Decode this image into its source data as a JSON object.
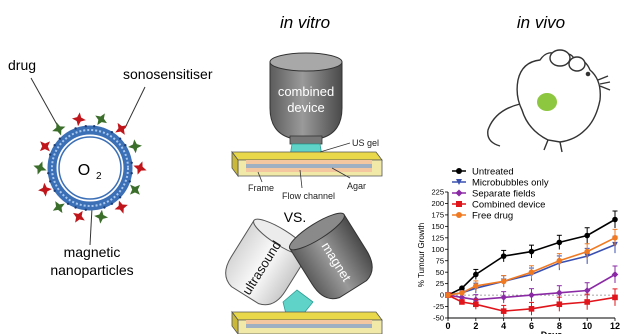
{
  "left_panel": {
    "drug_label": "drug",
    "sonosensitiser_label": "sonosensitiser",
    "core_label_main": "O",
    "core_label_sub": "2",
    "magnetic_label_line1": "magnetic",
    "magnetic_label_line2": "nanoparticles"
  },
  "in_vitro": {
    "heading": "in vitro",
    "device_label_line1": "combined",
    "device_label_line2": "device",
    "us_gel": "US gel",
    "agar": "Agar",
    "frame": "Frame",
    "flow_channel": "Flow channel",
    "vs": "VS.",
    "ultrasound_label": "ultrasound",
    "magnet_label": "magnet"
  },
  "in_vivo": {
    "heading": "in vivo"
  },
  "colors": {
    "blue_ring": "#3b6fb6",
    "drug_red": "#c0161b",
    "sonosensitiser_green": "#3b6e2a",
    "tumour_green": "#8dc63f",
    "gel_cyan": "#5fd3c8",
    "frame_yellow": "#e8d84a"
  },
  "chart_data": {
    "type": "line",
    "ylabel": "% Tumour Growth",
    "xlabel": "Days",
    "ylim": [
      -50,
      225
    ],
    "yticks": [
      "225",
      "200",
      "175",
      "150",
      "125",
      "100",
      "75",
      "50",
      "25",
      "0",
      "-25",
      "-50"
    ],
    "xticks": [
      "0",
      "2",
      "4",
      "6",
      "8",
      "10",
      "12"
    ],
    "x": [
      0,
      1,
      2,
      4,
      6,
      8,
      10,
      12
    ],
    "arrow_days": [
      0,
      2,
      4
    ],
    "series": [
      {
        "name": "Untreated",
        "color": "#000000",
        "marker": "circle",
        "values": [
          0,
          15,
          45,
          85,
          95,
          115,
          130,
          165
        ]
      },
      {
        "name": "Microbubbles only",
        "color": "#3a50b0",
        "marker": "triangle-down",
        "values": [
          0,
          5,
          15,
          30,
          45,
          70,
          85,
          110
        ]
      },
      {
        "name": "Separate fields",
        "color": "#8a2aa5",
        "marker": "diamond",
        "values": [
          0,
          -5,
          -10,
          -5,
          0,
          5,
          10,
          45
        ]
      },
      {
        "name": "Combined device",
        "color": "#e0151b",
        "marker": "square",
        "values": [
          0,
          -15,
          -20,
          -35,
          -30,
          -20,
          -15,
          -5
        ]
      },
      {
        "name": "Free drug",
        "color": "#f07a22",
        "marker": "circle",
        "values": [
          0,
          5,
          20,
          30,
          50,
          75,
          95,
          125
        ]
      }
    ]
  }
}
